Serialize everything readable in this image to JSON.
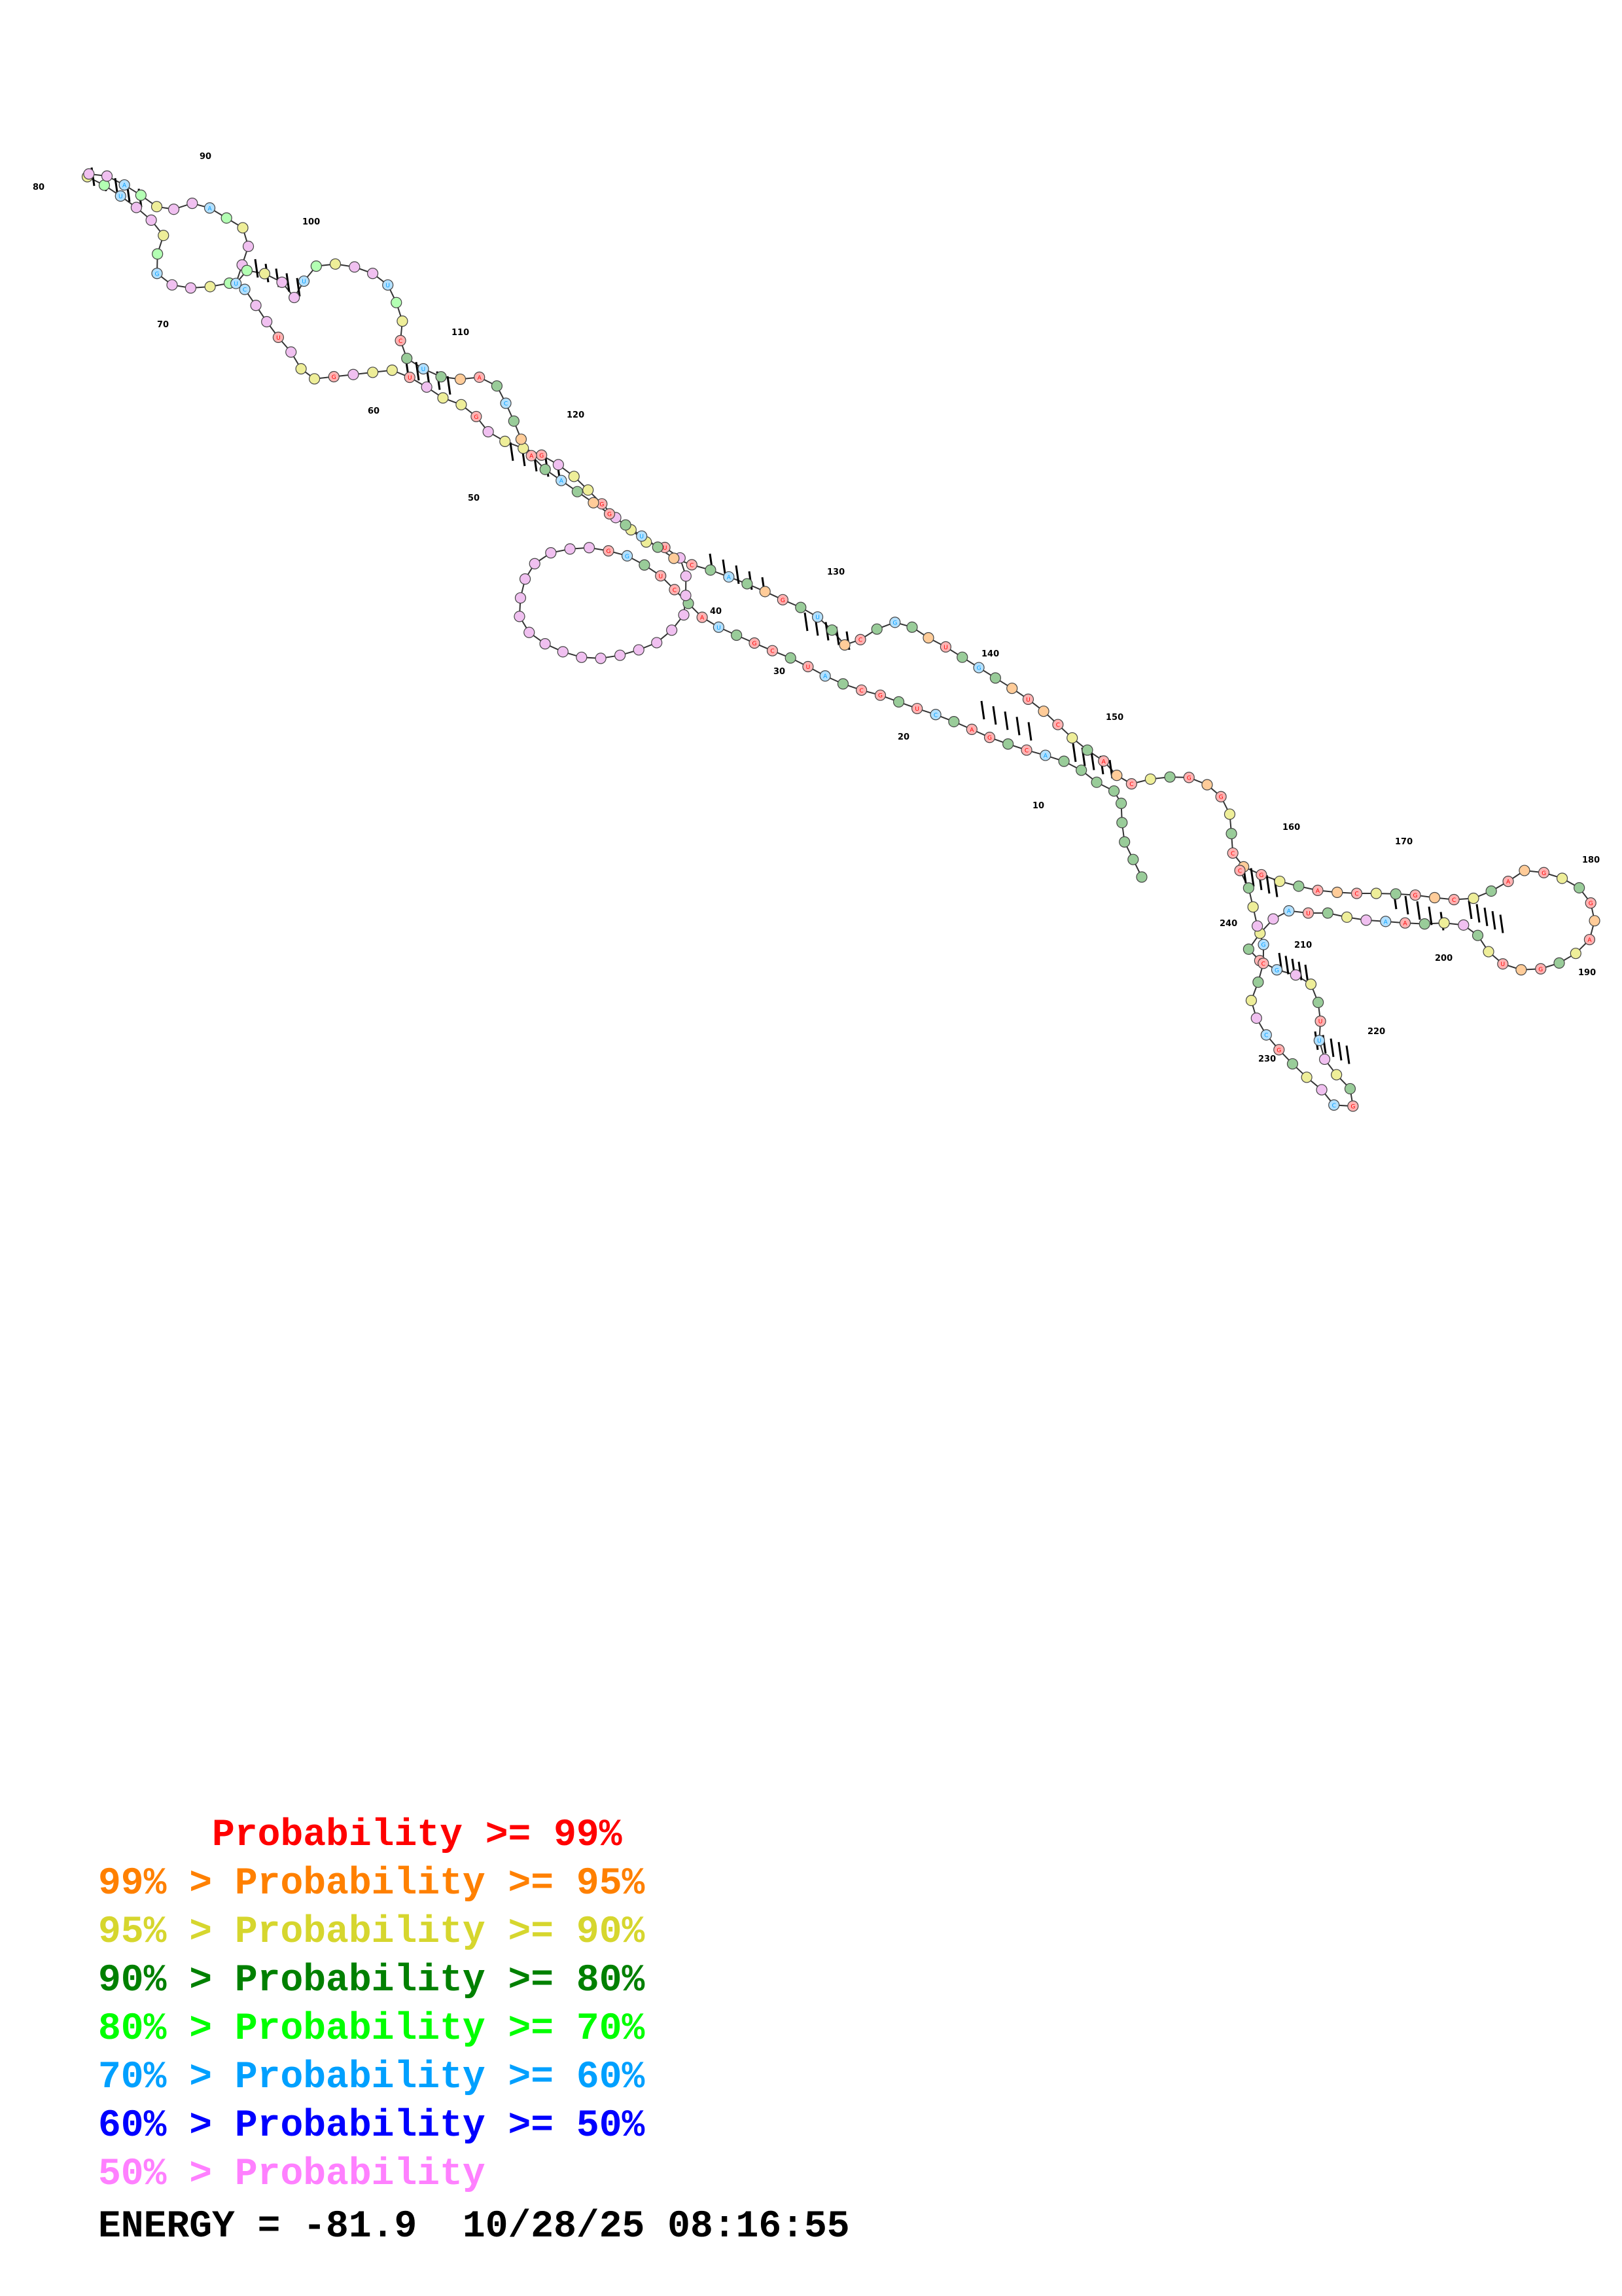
{
  "diagram": {
    "position_labels": [
      "10",
      "20",
      "30",
      "40",
      "50",
      "60",
      "70",
      "80",
      "90",
      "100",
      "110",
      "120",
      "130",
      "140",
      "150",
      "160",
      "170",
      "180",
      "190",
      "200",
      "210",
      "220",
      "230",
      "240"
    ],
    "probability_colors": {
      "p99": "#ff0000",
      "p95": "#ff8000",
      "p90": "#d6d62e",
      "p80": "#008000",
      "p70": "#00ff00",
      "p60": "#00a0ff",
      "p50": "#0000ff",
      "plow": "#ff80ff"
    }
  },
  "legend": [
    {
      "text": "     Probability >= 99%",
      "color": "#ff0000"
    },
    {
      "text": "99% > Probability >= 95%",
      "color": "#ff8000"
    },
    {
      "text": "95% > Probability >= 90%",
      "color": "#d6d62e"
    },
    {
      "text": "90% > Probability >= 80%",
      "color": "#008000"
    },
    {
      "text": "80% > Probability >= 70%",
      "color": "#00ff00"
    },
    {
      "text": "70% > Probability >= 60%",
      "color": "#00a0ff"
    },
    {
      "text": "60% > Probability >= 50%",
      "color": "#0000ff"
    },
    {
      "text": "50% > Probability",
      "color": "#ff80ff"
    }
  ],
  "footer": {
    "energy": "ENERGY = -81.9  10/28/25 08:16:55"
  }
}
